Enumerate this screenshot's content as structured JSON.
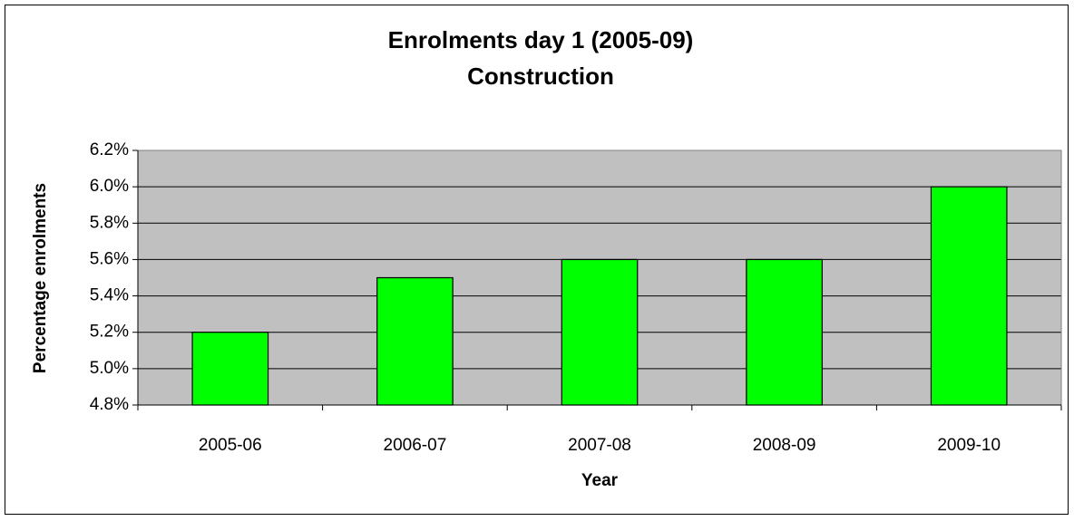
{
  "chart_data": {
    "type": "bar",
    "title": "Enrolments day 1 (2005-09)",
    "subtitle": "Construction",
    "x_label": "Year",
    "y_label": "Percentage enrolments",
    "categories": [
      "2005-06",
      "2006-07",
      "2007-08",
      "2008-09",
      "2009-10"
    ],
    "values": [
      5.2,
      5.5,
      5.6,
      5.6,
      6.0
    ],
    "color": "#00ff00",
    "ylim": [
      4.8,
      6.2
    ],
    "yticks": [
      {
        "value": 4.8,
        "label": "4.8%"
      },
      {
        "value": 5.0,
        "label": "5.0%"
      },
      {
        "value": 5.2,
        "label": "5.2%"
      },
      {
        "value": 5.4,
        "label": "5.4%"
      },
      {
        "value": 5.6,
        "label": "5.6%"
      },
      {
        "value": 5.8,
        "label": "5.8%"
      },
      {
        "value": 6.0,
        "label": "6.0%"
      },
      {
        "value": 6.2,
        "label": "6.2%"
      }
    ],
    "grid": true
  }
}
